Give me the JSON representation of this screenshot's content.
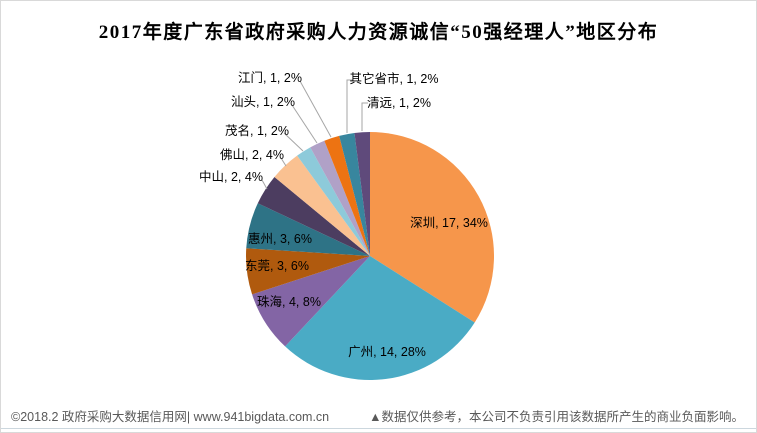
{
  "title": "2017年度广东省政府采购人力资源诚信“50强经理人”地区分布",
  "footer": {
    "copyright": "©2018.2 政府采购大数据信用网| www.941bigdata.com.cn",
    "disclaimer": "▲数据仅供参考，本公司不负责引用该数据所产生的商业负面影响。"
  },
  "chart_data": {
    "type": "pie",
    "title": "2017年度广东省政府采购人力资源诚信“50强经理人”地区分布",
    "total": 50,
    "start_angle_deg": 0,
    "direction": "clockwise",
    "legend_position": "none",
    "leader_line_color": "#a6a6a6",
    "slices": [
      {
        "id": "shenzhen",
        "name": "深圳",
        "value": 17,
        "percent": "34%",
        "label": "深圳, 17, 34%",
        "color": "#F6964B",
        "label_placement": "inside"
      },
      {
        "id": "guangzhou",
        "name": "广州",
        "value": 14,
        "percent": "28%",
        "label": "广州, 14, 28%",
        "color": "#4AABC5",
        "label_placement": "inside"
      },
      {
        "id": "zhuhai",
        "name": "珠海",
        "value": 4,
        "percent": "8%",
        "label": "珠海, 4, 8%",
        "color": "#8365A5",
        "label_placement": "inside"
      },
      {
        "id": "dongguan",
        "name": "东莞",
        "value": 3,
        "percent": "6%",
        "label": "东莞, 3, 6%",
        "color": "#B05A0E",
        "label_placement": "inside"
      },
      {
        "id": "huizhou",
        "name": "惠州",
        "value": 3,
        "percent": "6%",
        "label": "惠州, 3, 6%",
        "color": "#2E7386",
        "label_placement": "inside"
      },
      {
        "id": "zhongshan",
        "name": "中山",
        "value": 2,
        "percent": "4%",
        "label": "中山, 2, 4%",
        "color": "#4C3D60",
        "label_placement": "outside"
      },
      {
        "id": "foshan",
        "name": "佛山",
        "value": 2,
        "percent": "4%",
        "label": "佛山, 2, 4%",
        "color": "#FAC191",
        "label_placement": "outside"
      },
      {
        "id": "maoming",
        "name": "茂名",
        "value": 1,
        "percent": "2%",
        "label": "茂名, 1, 2%",
        "color": "#8DCADA",
        "label_placement": "outside"
      },
      {
        "id": "shantou",
        "name": "汕头",
        "value": 1,
        "percent": "2%",
        "label": "汕头, 1, 2%",
        "color": "#B0A1C7",
        "label_placement": "outside"
      },
      {
        "id": "jiangmen",
        "name": "江门",
        "value": 1,
        "percent": "2%",
        "label": "江门, 1, 2%",
        "color": "#ED7312",
        "label_placement": "outside"
      },
      {
        "id": "other",
        "name": "其它省市",
        "value": 1,
        "percent": "2%",
        "label": "其它省市, 1, 2%",
        "color": "#38869E",
        "label_placement": "outside"
      },
      {
        "id": "qingyuan",
        "name": "清远",
        "value": 1,
        "percent": "2%",
        "label": "清远, 1, 2%",
        "color": "#5F4A7B",
        "label_placement": "outside"
      }
    ]
  }
}
